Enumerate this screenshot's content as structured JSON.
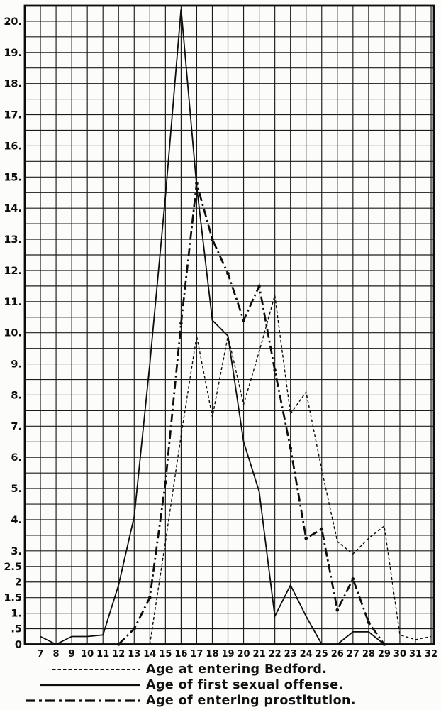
{
  "page": {
    "background": "#fcfcfa",
    "ink": "#0d0d0d"
  },
  "chart_data": {
    "type": "line",
    "title": "",
    "grid": "on",
    "grid_step": {
      "x": 1,
      "y": 0.5
    },
    "xlim": [
      6,
      32.2
    ],
    "ylim": [
      0,
      20.5
    ],
    "legend_position": "bottom",
    "x_ticks": [
      7,
      8,
      9,
      10,
      11,
      12,
      13,
      14,
      15,
      16,
      17,
      18,
      19,
      20,
      21,
      22,
      23,
      24,
      25,
      26,
      27,
      28,
      29,
      30,
      31,
      32
    ],
    "y_ticks": [
      {
        "v": 20,
        "label": "20."
      },
      {
        "v": 19,
        "label": "19."
      },
      {
        "v": 18,
        "label": "18."
      },
      {
        "v": 17,
        "label": "17."
      },
      {
        "v": 16,
        "label": "16."
      },
      {
        "v": 15,
        "label": "15."
      },
      {
        "v": 14,
        "label": "14."
      },
      {
        "v": 13,
        "label": "13."
      },
      {
        "v": 12,
        "label": "12."
      },
      {
        "v": 11,
        "label": "11."
      },
      {
        "v": 10,
        "label": "10."
      },
      {
        "v": 9,
        "label": "9."
      },
      {
        "v": 8,
        "label": "8."
      },
      {
        "v": 7,
        "label": "7."
      },
      {
        "v": 6,
        "label": "6."
      },
      {
        "v": 5,
        "label": "5."
      },
      {
        "v": 4,
        "label": "4."
      },
      {
        "v": 3,
        "label": "3."
      },
      {
        "v": 2.5,
        "label": "2.5"
      },
      {
        "v": 2,
        "label": "2"
      },
      {
        "v": 1.5,
        "label": "1.5"
      },
      {
        "v": 1,
        "label": "1."
      },
      {
        "v": 0.5,
        "label": ".5"
      },
      {
        "v": 0,
        "label": "0"
      }
    ],
    "series": [
      {
        "name": "Age at entering Bedford.",
        "style": "dashed",
        "markers": false,
        "points": [
          [
            14,
            0
          ],
          [
            15,
            3.3
          ],
          [
            16,
            6.7
          ],
          [
            17,
            9.9
          ],
          [
            18,
            7.3
          ],
          [
            19,
            9.9
          ],
          [
            20,
            7.7
          ],
          [
            21,
            9.4
          ],
          [
            22,
            11.2
          ],
          [
            23,
            7.4
          ],
          [
            24,
            8.1
          ],
          [
            25,
            5.6
          ],
          [
            26,
            3.3
          ],
          [
            27,
            2.9
          ],
          [
            28,
            3.4
          ],
          [
            29,
            3.8
          ],
          [
            30,
            0.3
          ],
          [
            31,
            0.15
          ],
          [
            32,
            0.25
          ]
        ]
      },
      {
        "name": "Age of first sexual offense.",
        "style": "solid",
        "markers": false,
        "points": [
          [
            7,
            0.25
          ],
          [
            8,
            0
          ],
          [
            9,
            0.25
          ],
          [
            10,
            0.25
          ],
          [
            11,
            0.3
          ],
          [
            12,
            1.9
          ],
          [
            13,
            4.1
          ],
          [
            14,
            9.0
          ],
          [
            15,
            14.4
          ],
          [
            16,
            20.4
          ],
          [
            17,
            14.7
          ],
          [
            18,
            10.4
          ],
          [
            19,
            9.9
          ],
          [
            20,
            6.5
          ],
          [
            21,
            4.9
          ],
          [
            22,
            0.9
          ],
          [
            23,
            1.9
          ],
          [
            24,
            0.9
          ],
          [
            25,
            0
          ],
          [
            26,
            0
          ],
          [
            27,
            0.4
          ],
          [
            28,
            0.4
          ],
          [
            29,
            0
          ]
        ]
      },
      {
        "name": "Age of entering prostitution.",
        "style": "dashdot",
        "markers": true,
        "points": [
          [
            12,
            0
          ],
          [
            13,
            0.5
          ],
          [
            14,
            1.5
          ],
          [
            15,
            5.2
          ],
          [
            16,
            10.3
          ],
          [
            17,
            14.8
          ],
          [
            18,
            13.0
          ],
          [
            19,
            11.9
          ],
          [
            20,
            10.4
          ],
          [
            21,
            11.5
          ],
          [
            22,
            8.8
          ],
          [
            23,
            6.3
          ],
          [
            24,
            3.4
          ],
          [
            25,
            3.7
          ],
          [
            26,
            1.1
          ],
          [
            27,
            2.1
          ],
          [
            28,
            0.7
          ],
          [
            29,
            0
          ]
        ]
      }
    ]
  }
}
